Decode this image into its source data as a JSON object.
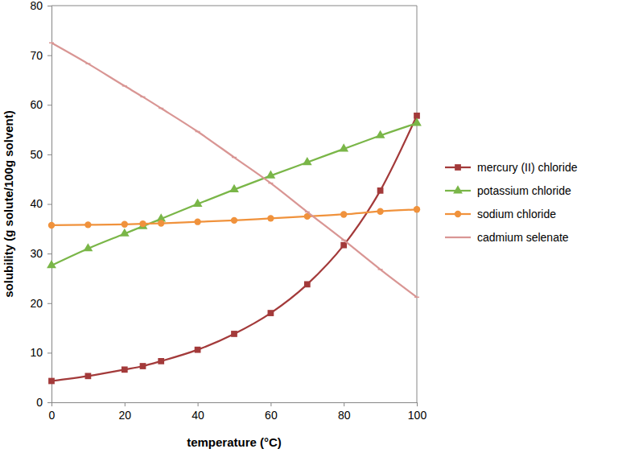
{
  "chart_data": {
    "type": "line",
    "x_label": "temperature (°C)",
    "y_label": "solubility (g solute/100g solvent)",
    "x": [
      0,
      10,
      20,
      25,
      30,
      40,
      50,
      60,
      70,
      80,
      90,
      100
    ],
    "xlim": [
      0,
      100
    ],
    "xticks": [
      0,
      20,
      40,
      60,
      80,
      100
    ],
    "ylim": [
      0,
      80
    ],
    "yticks": [
      0,
      10,
      20,
      30,
      40,
      50,
      60,
      70,
      80
    ],
    "grid": false,
    "legend": "right",
    "series": [
      {
        "name": "mercury (II) chloride",
        "color": "#a33a3a",
        "marker": "square",
        "values": [
          4.3,
          5.3,
          6.6,
          7.3,
          8.3,
          10.6,
          13.8,
          18.0,
          23.8,
          31.7,
          42.7,
          57.8
        ]
      },
      {
        "name": "potassium chloride",
        "color": "#7ab648",
        "marker": "triangle",
        "values": [
          27.6,
          31.0,
          34.0,
          35.5,
          37.0,
          40.0,
          42.9,
          45.7,
          48.4,
          51.1,
          53.8,
          56.3
        ]
      },
      {
        "name": "sodium chloride",
        "color": "#f0923c",
        "marker": "circle",
        "values": [
          35.7,
          35.8,
          35.9,
          36.0,
          36.1,
          36.4,
          36.7,
          37.1,
          37.5,
          37.9,
          38.5,
          38.9
        ]
      },
      {
        "name": "cadmium selenate",
        "color": "#d99694",
        "marker": "dash",
        "values": [
          72.5,
          68.3,
          63.8,
          61.6,
          59.3,
          54.6,
          49.4,
          44.2,
          38.4,
          32.7,
          26.8,
          21.2
        ]
      }
    ]
  }
}
